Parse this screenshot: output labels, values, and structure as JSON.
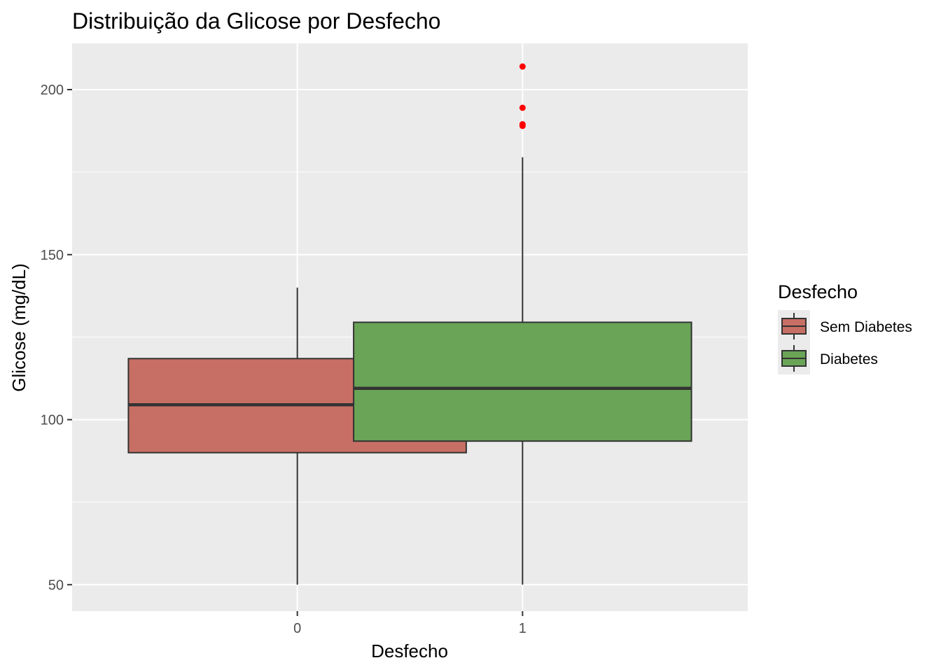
{
  "chart_data": {
    "type": "boxplot",
    "title": "Distribuição da Glicose por Desfecho",
    "xlabel": "Desfecho",
    "ylabel": "Glicose (mg/dL)",
    "ylim": [
      42,
      214
    ],
    "yticks": [
      50,
      100,
      150,
      200
    ],
    "ytick_labels": [
      "50",
      "100",
      "150",
      "200"
    ],
    "grid": true,
    "legend": {
      "title": "Desfecho",
      "position": "right",
      "entries": [
        {
          "label": "Sem Diabetes",
          "color": "#c76f64"
        },
        {
          "label": "Diabetes",
          "color": "#6aa457"
        }
      ]
    },
    "categories": [
      "0",
      "1"
    ],
    "boxes": [
      {
        "category": "0",
        "series": "Sem Diabetes",
        "whisker_low": 50,
        "q1": 90,
        "median": 104.5,
        "q3": 118.5,
        "whisker_high": 140,
        "outliers": [],
        "color": "#c76f64"
      },
      {
        "category": "1",
        "series": "Diabetes",
        "whisker_low": 50,
        "q1": 93.5,
        "median": 109.5,
        "q3": 129.5,
        "whisker_high": 179.5,
        "outliers": [
          207,
          194.5,
          189.5,
          189
        ],
        "color": "#6aa457"
      }
    ],
    "outlier_color": "#ff0000",
    "panel_color": "#ebebeb",
    "grid_color": "#ffffff"
  }
}
